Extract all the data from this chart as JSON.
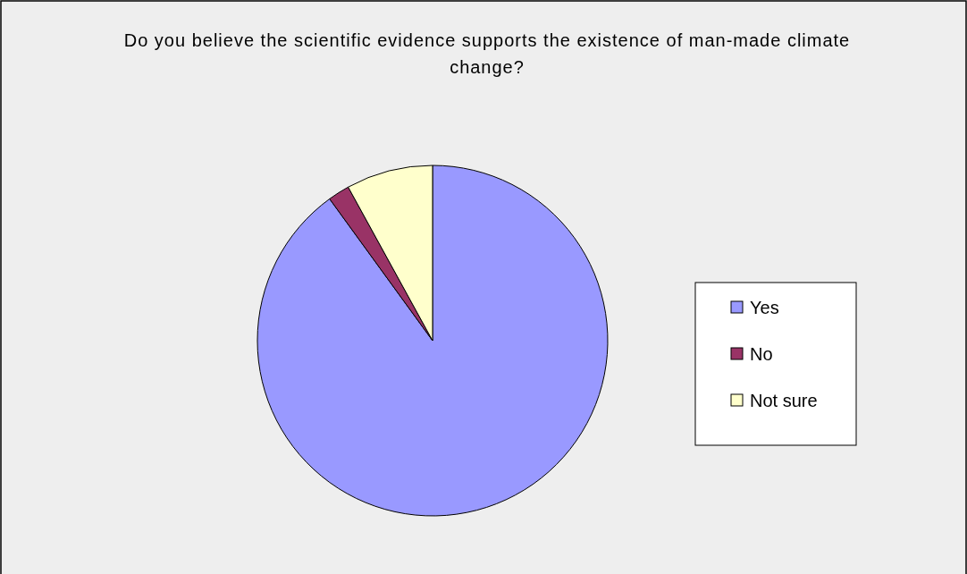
{
  "chart_data": {
    "type": "pie",
    "title": "Do you believe the scientific evidence supports the existence of man-made climate change?",
    "categories": [
      "Yes",
      "No",
      "Not sure"
    ],
    "values": [
      90,
      2,
      8
    ],
    "colors": [
      "#9999ff",
      "#993366",
      "#ffffcc"
    ],
    "legend": "right"
  }
}
